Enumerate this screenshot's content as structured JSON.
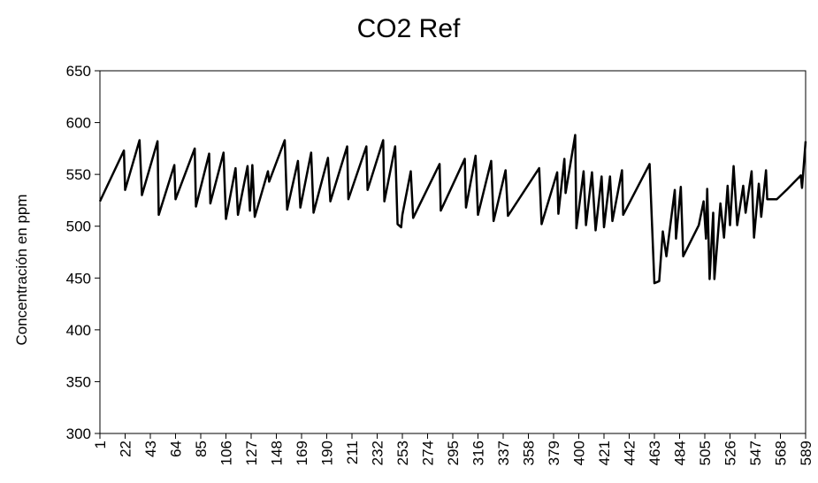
{
  "chart_data": {
    "type": "line",
    "title": "CO2 Ref",
    "y_label": "Concentración  en ppm",
    "x": [
      1,
      21,
      22,
      34,
      36,
      49,
      50,
      63,
      64,
      80,
      81,
      92,
      93,
      104,
      106,
      114,
      116,
      124,
      126,
      128,
      130,
      141,
      142,
      155,
      157,
      166,
      168,
      177,
      179,
      191,
      193,
      207,
      208,
      223,
      224,
      237,
      238,
      247,
      249,
      252,
      253,
      260,
      262,
      284,
      285,
      305,
      306,
      314,
      316,
      327,
      329,
      339,
      341,
      367,
      369,
      382,
      383,
      388,
      389,
      397,
      398,
      404,
      406,
      411,
      414,
      419,
      421,
      426,
      428,
      436,
      437,
      459,
      463,
      467,
      470,
      473,
      480,
      481,
      485,
      487,
      500,
      504,
      506,
      507,
      509,
      512,
      513,
      518,
      521,
      524,
      526,
      529,
      532,
      537,
      539,
      544,
      546,
      550,
      552,
      556,
      557,
      565,
      574,
      585,
      586,
      589
    ],
    "series": [
      {
        "name": "CO2 Ref",
        "color": "#000000",
        "values": [
          524,
          573,
          535,
          583,
          530,
          582,
          511,
          559,
          526,
          575,
          519,
          570,
          522,
          571,
          507,
          556,
          511,
          558,
          515,
          559,
          509,
          553,
          543,
          583,
          516,
          563,
          518,
          571,
          513,
          566,
          524,
          577,
          526,
          577,
          535,
          583,
          524,
          577,
          502,
          499,
          511,
          553,
          508,
          560,
          515,
          565,
          518,
          568,
          511,
          563,
          505,
          554,
          510,
          556,
          502,
          552,
          512,
          565,
          532,
          588,
          498,
          553,
          501,
          552,
          496,
          548,
          499,
          548,
          505,
          554,
          511,
          560,
          445,
          447,
          495,
          471,
          535,
          488,
          538,
          471,
          501,
          524,
          488,
          536,
          449,
          513,
          449,
          522,
          489,
          539,
          501,
          558,
          501,
          539,
          513,
          553,
          489,
          541,
          509,
          554,
          526,
          526,
          536,
          549,
          537,
          582
        ]
      }
    ],
    "xlim": [
      1,
      589
    ],
    "xticks": [
      1,
      22,
      43,
      64,
      85,
      106,
      127,
      148,
      169,
      190,
      211,
      232,
      253,
      274,
      295,
      316,
      337,
      358,
      379,
      400,
      421,
      442,
      463,
      484,
      505,
      526,
      547,
      568,
      589
    ],
    "ylim": [
      300,
      650
    ],
    "yticks": [
      300,
      350,
      400,
      450,
      500,
      550,
      600,
      650
    ]
  }
}
